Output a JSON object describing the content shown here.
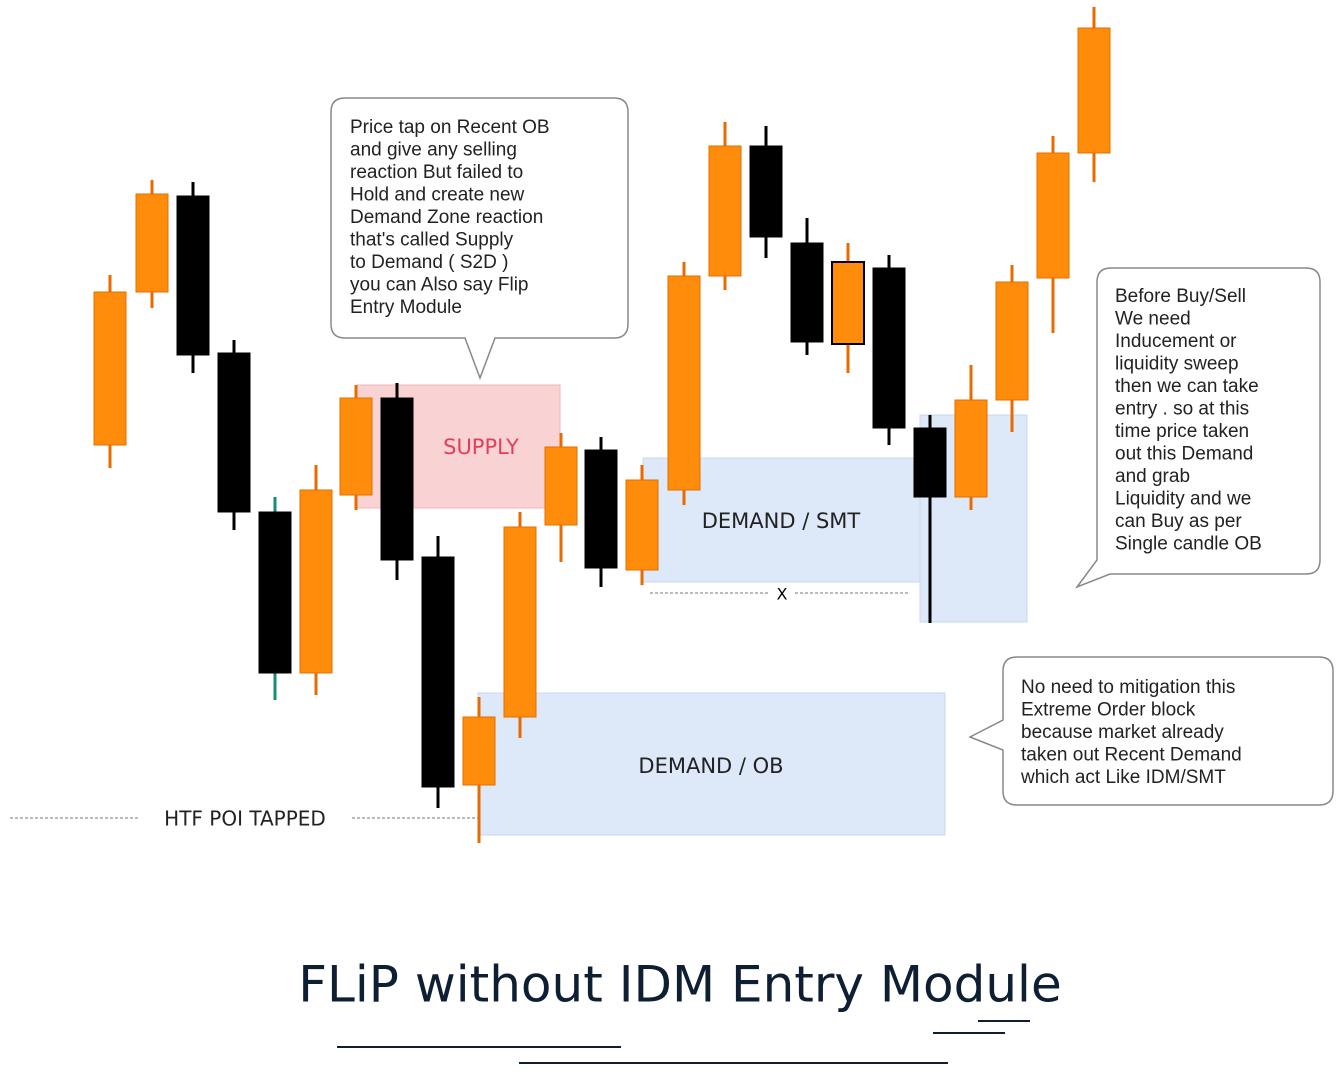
{
  "zones": {
    "supply": "SUPPLY",
    "demand_smt": "DEMAND / SMT",
    "demand_ob": "DEMAND / OB"
  },
  "markers": {
    "htf": "HTF  POI  TAPPED",
    "x": "X"
  },
  "callouts": [
    {
      "lines": [
        "Price tap on Recent OB",
        "and give any selling",
        "reaction But failed to",
        "Hold  and create new",
        "Demand Zone reaction",
        "that's called Supply",
        " to Demand  ( S2D )",
        "you can Also  say Flip",
        "Entry Module"
      ]
    },
    {
      "lines": [
        "Before Buy/Sell",
        "We need",
        "Inducement or",
        "liquidity sweep",
        "then we can take",
        "entry . so at this",
        "time price taken",
        "out this Demand",
        "and grab",
        "Liquidity and we",
        "can Buy as per",
        "Single candle OB"
      ]
    },
    {
      "lines": [
        "No need to mitigation this",
        "Extreme Order block",
        "because market already",
        "taken out Recent  Demand",
        "which act Like IDM/SMT"
      ]
    }
  ],
  "title": "FLiP without IDM  Entry Module"
}
